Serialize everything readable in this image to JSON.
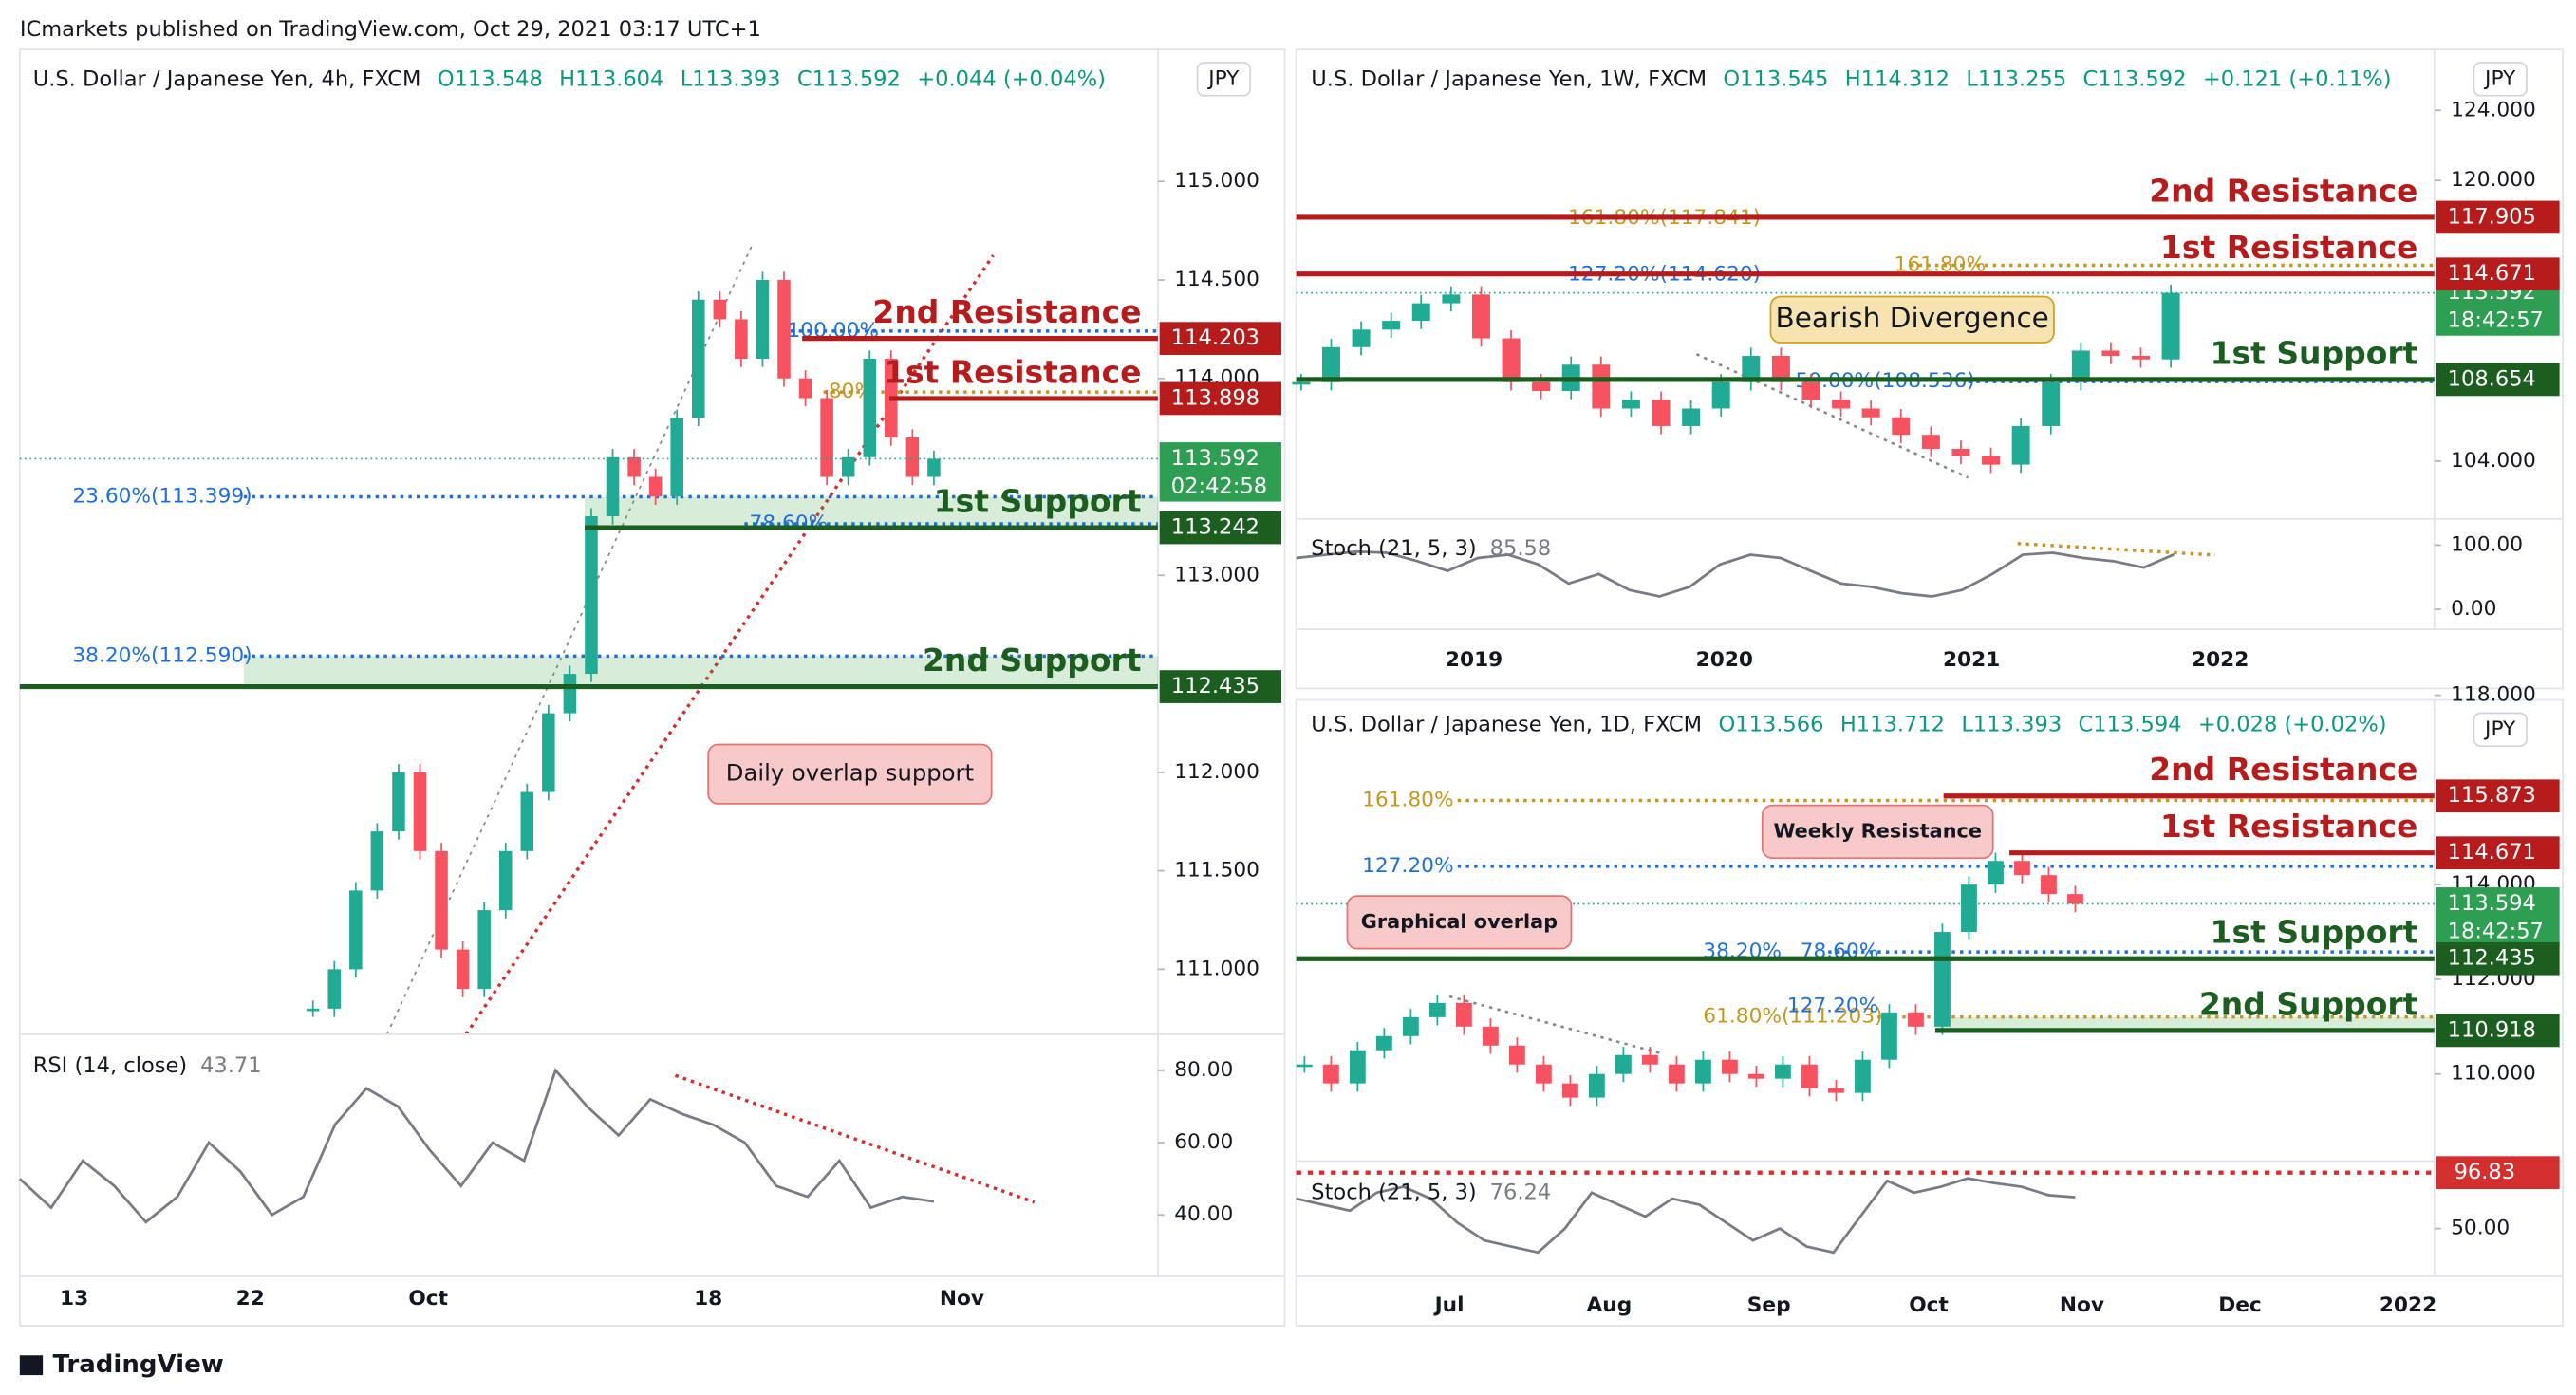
{
  "header": {
    "text": "ICmarkets published on TradingView.com, Oct 29, 2021 03:17 UTC+1"
  },
  "footer": {
    "brand": "TradingView"
  },
  "panels": [
    {
      "title": "U.S. Dollar / Japanese Yen, 4h, FXCM",
      "ohlc": [
        "O113.548",
        "H113.604",
        "L113.393",
        "C113.592"
      ],
      "change": "+0.044 (+0.04%)",
      "currency": "JPY",
      "ylim": [
        110.67,
        115.67
      ],
      "price_ticks": [
        {
          "value": 115,
          "label": "115.000"
        },
        {
          "value": 114.5,
          "label": "114.500"
        },
        {
          "value": 114,
          "label": "114.000"
        },
        {
          "value": 113,
          "label": "113.000"
        },
        {
          "value": 112,
          "label": "112.000"
        },
        {
          "value": 111.5,
          "label": "111.500"
        },
        {
          "value": 111,
          "label": "111.000"
        }
      ],
      "closes": [
        110.8,
        111.0,
        111.4,
        111.7,
        112.0,
        111.6,
        111.1,
        110.9,
        111.3,
        111.6,
        111.9,
        112.3,
        112.5,
        113.3,
        113.6,
        113.5,
        113.4,
        113.8,
        114.4,
        114.3,
        114.1,
        114.5,
        114.0,
        113.9,
        113.5,
        113.6,
        114.1,
        113.7,
        113.5,
        113.592
      ],
      "current": {
        "price": 113.592,
        "countdown": "02:42:58"
      },
      "levels": [
        {
          "name": "2nd Resistance",
          "price": 114.203,
          "color": "#b71c1c"
        },
        {
          "name": "1st Resistance",
          "price": 113.898,
          "color": "#b71c1c"
        },
        {
          "name": "1st Support",
          "price": 113.242,
          "color": "#1b5e20"
        },
        {
          "name": "2nd Support",
          "price": 112.435,
          "color": "#1b5e20"
        }
      ],
      "fibs": [
        {
          "label": "100.00%",
          "color": "#1e6fd9"
        },
        {
          "label": "80%",
          "color": "#c8961e"
        },
        {
          "label": "23.60%(113.399)",
          "price": 113.399,
          "color": "#1e6fd9"
        },
        {
          "label": "78.60%",
          "color": "#1e6fd9"
        },
        {
          "label": "38.20%(112.590)",
          "price": 112.59,
          "color": "#1e6fd9"
        }
      ],
      "notes": [
        {
          "text": "Daily overlap support"
        }
      ],
      "indicator": {
        "name": "RSI (14, close)",
        "value": 43.71,
        "ylim": [
          23,
          90
        ],
        "ticks": [
          {
            "value": 80,
            "label": "80.00"
          },
          {
            "value": 60,
            "label": "60.00"
          },
          {
            "value": 40,
            "label": "40.00"
          }
        ],
        "values": [
          50,
          42,
          55,
          48,
          38,
          45,
          60,
          52,
          40,
          45,
          65,
          75,
          70,
          58,
          48,
          60,
          55,
          80,
          70,
          62,
          72,
          68,
          65,
          60,
          48,
          45,
          55,
          42,
          45,
          43.71
        ]
      },
      "time_ticks": [
        "13",
        "22",
        "Oct",
        "18",
        "Nov"
      ]
    },
    {
      "title": "U.S. Dollar / Japanese Yen, 1W, FXCM",
      "ohlc": [
        "O113.545",
        "H114.312",
        "L113.255",
        "C113.592"
      ],
      "change": "+0.121 (+0.11%)",
      "currency": "JPY",
      "ylim": [
        100.71,
        127.47
      ],
      "price_ticks": [
        {
          "value": 124,
          "label": "124.000"
        },
        {
          "value": 120,
          "label": "120.000"
        },
        {
          "value": 104,
          "label": "104.000"
        }
      ],
      "closes": [
        108.5,
        110.5,
        111.5,
        112.0,
        113.0,
        113.5,
        111.0,
        108.5,
        108.0,
        109.5,
        107.0,
        107.5,
        106.0,
        107.0,
        108.5,
        110.0,
        108.5,
        107.5,
        107.0,
        106.5,
        105.5,
        104.7,
        104.3,
        103.8,
        106.0,
        108.5,
        110.3,
        110.0,
        109.8,
        113.592
      ],
      "current": {
        "price": 113.592,
        "countdown": "18:42:57"
      },
      "levels": [
        {
          "name": "2nd Resistance",
          "price": 117.905,
          "color": "#b71c1c"
        },
        {
          "name": "1st Resistance",
          "price": 114.671,
          "color": "#b71c1c"
        },
        {
          "name": "1st Support",
          "price": 108.654,
          "color": "#1b5e20"
        }
      ],
      "fibs": [
        {
          "label": "161.80%(117.841)",
          "price": 117.841,
          "color": "#c8961e"
        },
        {
          "label": "127.20%(114.620)",
          "price": 114.62,
          "color": "#1e6fd9"
        },
        {
          "label": "161.80%",
          "color": "#c8961e"
        },
        {
          "label": "50.00%(108.536)",
          "price": 108.536,
          "color": "#1e6fd9"
        }
      ],
      "notes": [
        {
          "text": "Bearish Divergence"
        }
      ],
      "indicator": {
        "name": "Stoch (21, 5, 3)",
        "value": 85.58,
        "ylim": [
          -31,
          141
        ],
        "ticks": [
          {
            "value": 100,
            "label": "100.00"
          },
          {
            "value": 0,
            "label": "0.00"
          }
        ],
        "values": [
          80,
          85,
          90,
          88,
          75,
          60,
          80,
          85,
          70,
          40,
          55,
          30,
          20,
          35,
          70,
          85,
          80,
          60,
          40,
          35,
          25,
          20,
          30,
          55,
          85,
          88,
          80,
          75,
          65,
          85.58
        ]
      },
      "time_ticks": [
        "2019",
        "2020",
        "2021",
        "2022"
      ]
    },
    {
      "title": "U.S. Dollar / Japanese Yen, 1D, FXCM",
      "ohlc": [
        "O113.566",
        "H113.712",
        "L113.393",
        "C113.594"
      ],
      "change": "+0.028 (+0.02%)",
      "currency": "JPY",
      "ylim": [
        108.16,
        117.9
      ],
      "price_ticks": [
        {
          "value": 118,
          "label": "118.000"
        },
        {
          "value": 114,
          "label": "114.000"
        },
        {
          "value": 112,
          "label": "112.000"
        },
        {
          "value": 110,
          "label": "110.000"
        }
      ],
      "closes": [
        110.2,
        109.8,
        110.5,
        110.8,
        111.2,
        111.5,
        111.0,
        110.6,
        110.2,
        109.8,
        109.5,
        110.0,
        110.4,
        110.2,
        109.8,
        110.3,
        110.0,
        109.9,
        110.2,
        109.7,
        109.6,
        110.3,
        111.3,
        111.0,
        113.0,
        114.0,
        114.5,
        114.2,
        113.8,
        113.594
      ],
      "current": {
        "price": 113.594,
        "countdown": "18:42:57"
      },
      "levels": [
        {
          "name": "2nd Resistance",
          "price": 115.873,
          "color": "#b71c1c"
        },
        {
          "name": "1st Resistance",
          "price": 114.671,
          "color": "#b71c1c"
        },
        {
          "name": "1st Support",
          "price": 112.435,
          "color": "#1b5e20"
        },
        {
          "name": "2nd Support",
          "price": 110.918,
          "color": "#1b5e20"
        }
      ],
      "fibs": [
        {
          "label": "161.80%",
          "color": "#c8961e"
        },
        {
          "label": "127.20%",
          "color": "#1e6fd9"
        },
        {
          "label": "38.20%",
          "color": "#1e6fd9"
        },
        {
          "label": "78.60%",
          "color": "#1e6fd9"
        },
        {
          "label": "61.80%(111.203)",
          "price": 111.203,
          "color": "#c8961e"
        },
        {
          "label": "127.20%",
          "color": "#1e6fd9"
        }
      ],
      "notes": [
        {
          "text": "Weekly Resistance"
        },
        {
          "text": "Graphical overlap"
        }
      ],
      "indicator": {
        "name": "Stoch (21, 5, 3)",
        "value": 76.24,
        "marker": 96.83,
        "ylim": [
          10,
          106.5
        ],
        "ticks": [
          {
            "value": 50,
            "label": "50.00"
          }
        ],
        "values": [
          75,
          70,
          65,
          80,
          85,
          75,
          55,
          40,
          35,
          30,
          50,
          80,
          70,
          60,
          75,
          70,
          55,
          40,
          50,
          35,
          30,
          60,
          90,
          80,
          85,
          92,
          88,
          85,
          78,
          76.24
        ]
      },
      "time_ticks": [
        "Jul",
        "Aug",
        "Sep",
        "Oct",
        "Nov",
        "Dec",
        "2022"
      ]
    }
  ]
}
